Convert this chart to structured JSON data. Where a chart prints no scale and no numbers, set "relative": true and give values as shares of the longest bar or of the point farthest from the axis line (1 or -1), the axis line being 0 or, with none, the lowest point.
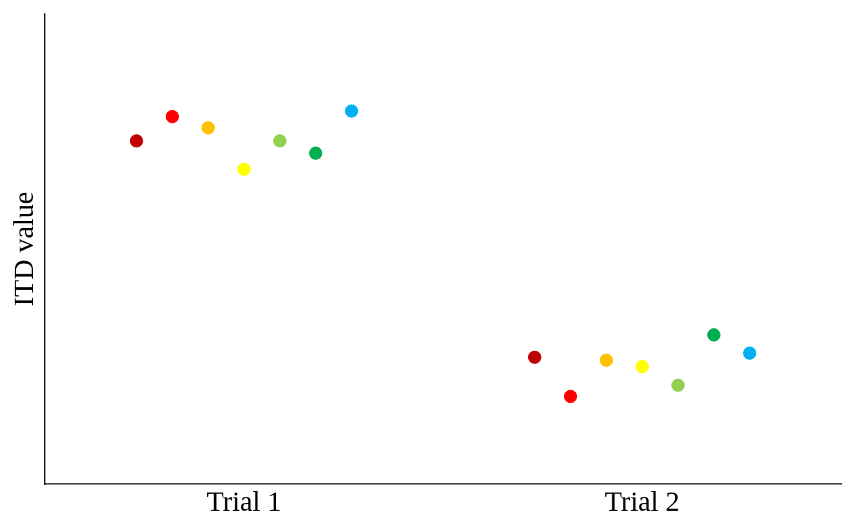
{
  "chart_data": {
    "type": "scatter",
    "relative": true,
    "ylabel": "ITD value",
    "marker": "circle",
    "categories": [
      "Trial 1",
      "Trial 2"
    ],
    "series": [
      {
        "color": "#c00000",
        "values": [
          0.92,
          0.34
        ]
      },
      {
        "color": "#ff0000",
        "values": [
          0.985,
          0.235
        ]
      },
      {
        "color": "#ffc000",
        "values": [
          0.955,
          0.332
        ]
      },
      {
        "color": "#ffff00",
        "values": [
          0.844,
          0.315
        ]
      },
      {
        "color": "#92d050",
        "values": [
          0.92,
          0.265
        ]
      },
      {
        "color": "#00b050",
        "values": [
          0.887,
          0.4
        ]
      },
      {
        "color": "#00b0f0",
        "values": [
          1,
          0.351
        ]
      }
    ]
  }
}
